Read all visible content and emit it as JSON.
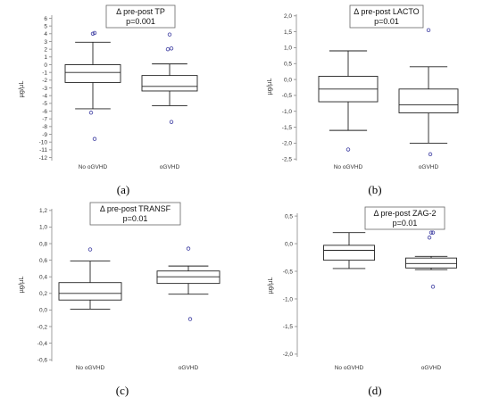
{
  "chart_data": [
    {
      "panel": "a",
      "panel_label": "(a)",
      "type": "box",
      "annotation": [
        "Δ pre-post  TP",
        "p=0.001"
      ],
      "ylabel": "µg/µL",
      "categories": [
        "No oGVHD",
        "oGVHD"
      ],
      "ylim": [
        -12.4,
        6.4
      ],
      "yticks": [
        6,
        5,
        4,
        3,
        2,
        1,
        0,
        -1,
        -2,
        -3,
        -4,
        -5,
        -6,
        -7,
        -8,
        -9,
        -10,
        -11,
        -12
      ],
      "ytick_labels": [
        "6",
        "5",
        "4",
        "3",
        "2",
        "1",
        "0",
        "-1",
        "-2",
        "-3",
        "-4",
        "-5",
        "-6",
        "-7",
        "-8",
        "-9",
        "-10",
        "-11",
        "-12"
      ],
      "boxes": [
        {
          "min": -5.7,
          "q1": -2.3,
          "median": -1.0,
          "q3": 0.0,
          "max": 2.9,
          "outliers": [
            4.0,
            4.1,
            -6.2,
            -9.6
          ]
        },
        {
          "min": -5.3,
          "q1": -3.4,
          "median": -2.8,
          "q3": -1.4,
          "max": 0.1,
          "outliers": [
            3.9,
            2.1,
            2.0,
            -7.4
          ]
        }
      ]
    },
    {
      "panel": "b",
      "panel_label": "(b)",
      "type": "box",
      "annotation": [
        "Δ pre-post LACTO",
        "p=0.01"
      ],
      "ylabel": "µg/µL",
      "categories": [
        "No oGVHD",
        "oGVHD"
      ],
      "ylim": [
        -2.55,
        2.05
      ],
      "yticks": [
        2,
        1.5,
        1,
        0.5,
        0,
        -0.5,
        -1,
        -1.5,
        -2,
        -2.5
      ],
      "ytick_labels": [
        "2,0",
        "1,5",
        "1,0",
        "0,5",
        "0,0",
        "-0,5",
        "-1,0",
        "-1,5",
        "-2,0",
        "-2,5"
      ],
      "boxes": [
        {
          "min": -1.6,
          "q1": -0.7,
          "median": -0.3,
          "q3": 0.1,
          "max": 0.9,
          "outliers": [
            -2.2
          ]
        },
        {
          "min": -2.0,
          "q1": -1.05,
          "median": -0.8,
          "q3": -0.3,
          "max": 0.4,
          "outliers": [
            1.55,
            -2.35
          ]
        }
      ]
    },
    {
      "panel": "c",
      "panel_label": "(c)",
      "type": "box",
      "annotation": [
        "Δ pre-post TRANSF",
        "p=0.01"
      ],
      "ylabel": "µg/µL",
      "categories": [
        "No oGVHD",
        "oGVHD"
      ],
      "ylim": [
        -0.62,
        1.22
      ],
      "yticks": [
        1.2,
        1,
        0.8,
        0.6,
        0.4,
        0.2,
        0,
        -0.2,
        -0.4,
        -0.6
      ],
      "ytick_labels": [
        "1,2",
        "1,0",
        "0,8",
        "0,6",
        "0,4",
        "0,2",
        "0,0",
        "-0,2",
        "-0,4",
        "-0,6"
      ],
      "boxes": [
        {
          "min": 0.01,
          "q1": 0.12,
          "median": 0.2,
          "q3": 0.33,
          "max": 0.59,
          "outliers": [
            0.73
          ]
        },
        {
          "min": 0.19,
          "q1": 0.32,
          "median": 0.4,
          "q3": 0.47,
          "max": 0.53,
          "outliers": [
            0.74,
            -0.11
          ]
        }
      ]
    },
    {
      "panel": "d",
      "panel_label": "(d)",
      "type": "box",
      "annotation": [
        "Δ pre-post ZAG-2",
        "p=0.01"
      ],
      "ylabel": "µg/µL",
      "categories": [
        "No oGVHD",
        "oGVHD"
      ],
      "ylim": [
        -2.05,
        0.55
      ],
      "yticks": [
        0.5,
        0,
        -0.5,
        -1,
        -1.5,
        -2
      ],
      "ytick_labels": [
        "0,5",
        "0,0",
        "-0,5",
        "-1,0",
        "-1,5",
        "-2,0"
      ],
      "boxes": [
        {
          "min": -0.45,
          "q1": -0.3,
          "median": -0.12,
          "q3": -0.03,
          "max": 0.2,
          "outliers": []
        },
        {
          "min": -0.47,
          "q1": -0.44,
          "median": -0.36,
          "q3": -0.26,
          "max": -0.23,
          "outliers": [
            0.2,
            0.2,
            0.11,
            -0.78
          ]
        }
      ]
    }
  ]
}
